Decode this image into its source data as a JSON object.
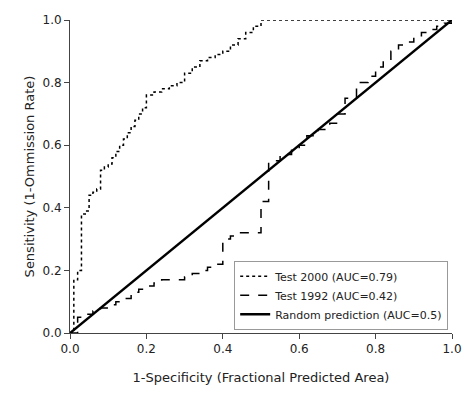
{
  "chart_data": {
    "type": "line",
    "xlabel": "1-Specificity (Fractional Predicted Area)",
    "ylabel": "Sensitivity (1-Ommission Rate)",
    "xlim": [
      0,
      1.0
    ],
    "ylim": [
      0,
      1.0
    ],
    "xticks": [
      {
        "value": 0.0,
        "label": "0.0"
      },
      0.2,
      0.4,
      0.6,
      0.8,
      {
        "value": 1.0,
        "label": "1.0"
      }
    ],
    "yticks": [
      {
        "value": 0.0,
        "label": "0.0"
      },
      0.2,
      0.4,
      0.6,
      0.8,
      {
        "value": 1.0,
        "label": "1.0"
      }
    ],
    "grid": false,
    "legend": "lower right",
    "series": [
      {
        "name": "Test 2000 (AUC=0.79)",
        "type": "step",
        "color": "#000000",
        "line_style": "dotted",
        "x": [
          0.0,
          0.01,
          0.02,
          0.03,
          0.04,
          0.05,
          0.06,
          0.07,
          0.08,
          0.09,
          0.1,
          0.11,
          0.12,
          0.13,
          0.14,
          0.15,
          0.16,
          0.17,
          0.18,
          0.19,
          0.2,
          0.22,
          0.24,
          0.26,
          0.28,
          0.3,
          0.32,
          0.34,
          0.36,
          0.38,
          0.4,
          0.42,
          0.44,
          0.46,
          0.48,
          0.5,
          1.0
        ],
        "values": [
          0.0,
          0.17,
          0.2,
          0.38,
          0.39,
          0.44,
          0.45,
          0.46,
          0.52,
          0.53,
          0.54,
          0.56,
          0.58,
          0.6,
          0.62,
          0.64,
          0.66,
          0.68,
          0.7,
          0.72,
          0.76,
          0.77,
          0.78,
          0.79,
          0.8,
          0.83,
          0.85,
          0.87,
          0.88,
          0.89,
          0.9,
          0.92,
          0.94,
          0.96,
          0.98,
          1.0,
          1.0
        ]
      },
      {
        "name": "Test 1992 (AUC=0.42)",
        "type": "step",
        "color": "#000000",
        "line_style": "dashed",
        "x": [
          0.0,
          0.02,
          0.04,
          0.06,
          0.08,
          0.1,
          0.12,
          0.14,
          0.16,
          0.18,
          0.2,
          0.22,
          0.24,
          0.3,
          0.32,
          0.34,
          0.36,
          0.38,
          0.4,
          0.42,
          0.44,
          0.5,
          0.52,
          0.55,
          0.58,
          0.6,
          0.62,
          0.65,
          0.68,
          0.7,
          0.72,
          0.75,
          0.78,
          0.8,
          0.82,
          0.84,
          0.86,
          0.88,
          0.9,
          0.92,
          0.94,
          0.96,
          0.98,
          1.0
        ],
        "values": [
          0.0,
          0.05,
          0.06,
          0.07,
          0.08,
          0.09,
          0.1,
          0.11,
          0.13,
          0.14,
          0.15,
          0.16,
          0.17,
          0.18,
          0.19,
          0.2,
          0.21,
          0.22,
          0.3,
          0.31,
          0.32,
          0.42,
          0.55,
          0.57,
          0.59,
          0.6,
          0.63,
          0.65,
          0.67,
          0.7,
          0.75,
          0.8,
          0.82,
          0.85,
          0.87,
          0.9,
          0.92,
          0.93,
          0.95,
          0.96,
          0.97,
          0.98,
          0.99,
          1.0
        ]
      },
      {
        "name": "Random prediction (AUC=0.5)",
        "type": "line",
        "color": "#000000",
        "line_style": "solid",
        "x": [
          0,
          1
        ],
        "values": [
          0,
          1
        ]
      }
    ]
  }
}
